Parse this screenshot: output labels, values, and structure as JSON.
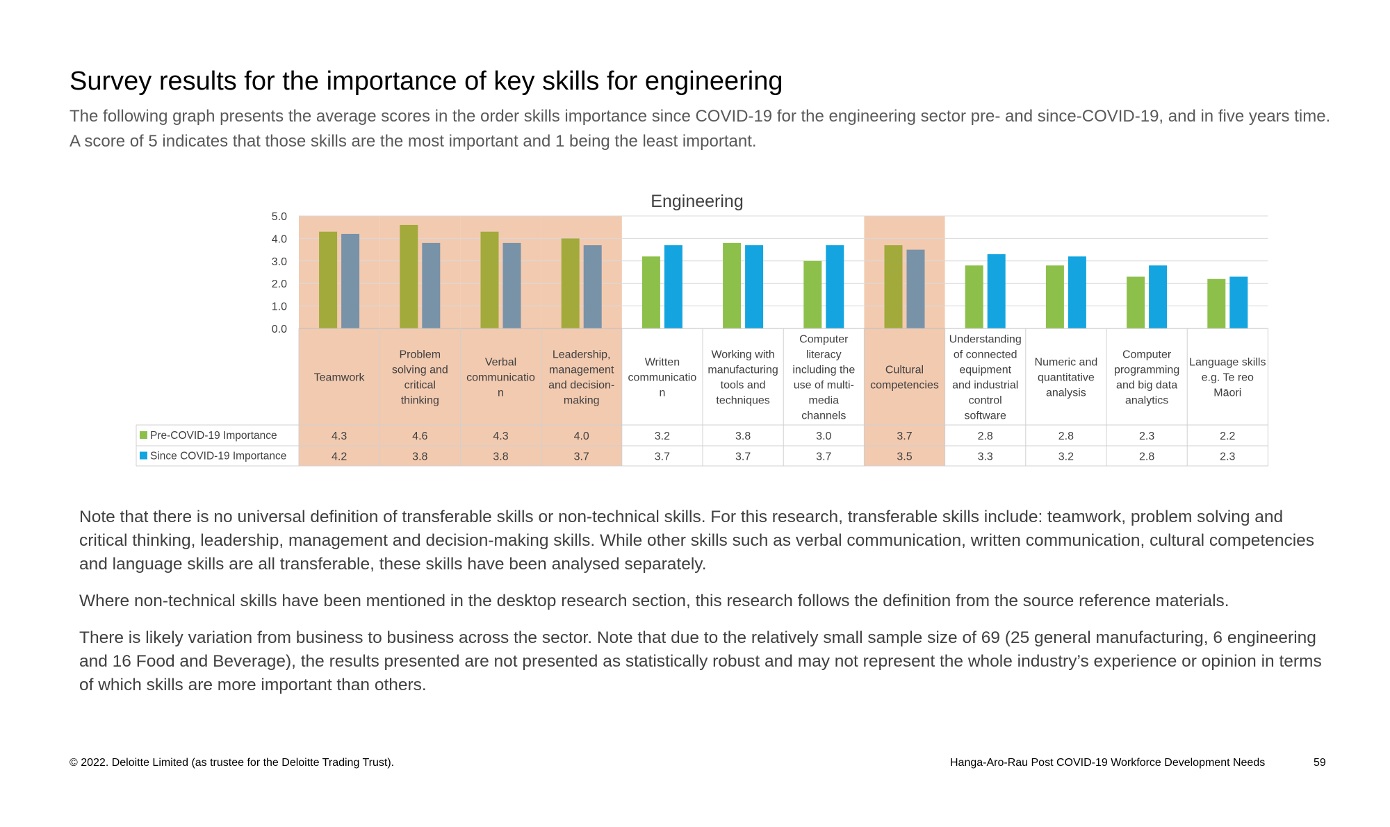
{
  "page": {
    "title": "Survey results for the importance of key skills for engineering",
    "subtitle": "The following graph presents the average scores in the order skills importance since COVID-19 for the engineering sector pre- and since-COVID-19, and in five years time. A score of 5 indicates that those skills are the most important and 1 being the least important.",
    "notes": [
      "Note that there is no universal definition of transferable skills or non-technical skills. For this research, transferable skills include: teamwork, problem solving and critical thinking, leadership, management and decision-making skills. While other skills such as verbal communication, written communication, cultural competencies and language skills are all transferable, these skills have been analysed separately.",
      "Where non-technical skills have been mentioned in the desktop research section, this research follows the definition from the source reference materials.",
      "There is likely variation from business to business across the sector. Note that due to the relatively small sample size of 69 (25 general manufacturing, 6 engineering and 16 Food and Beverage), the results presented are not presented as statistically robust and may not represent the whole industry’s experience or opinion in terms of which skills are more important than others."
    ],
    "footer_left": "© 2022. Deloitte Limited (as trustee for the Deloitte Trading Trust).",
    "footer_right": "Hanga-Aro-Rau Post COVID-19 Workforce Development Needs",
    "page_number": "59"
  },
  "chart_data": {
    "type": "bar",
    "title": "Engineering",
    "xlabel": "",
    "ylabel": "",
    "ylim": [
      0,
      5
    ],
    "y_ticks": [
      "0.0",
      "1.0",
      "2.0",
      "3.0",
      "4.0",
      "5.0"
    ],
    "grid": true,
    "legend": "data-table-left",
    "categories": [
      [
        "Teamwork"
      ],
      [
        "Problem",
        "solving and",
        "critical",
        "thinking"
      ],
      [
        "Verbal",
        "communicatio",
        "n"
      ],
      [
        "Leadership,",
        "management",
        "and decision-",
        "making"
      ],
      [
        "Written",
        "communicatio",
        "n"
      ],
      [
        "Working with",
        "manufacturing",
        "tools and",
        "techniques"
      ],
      [
        "Computer",
        "literacy",
        "including the",
        "use of multi-",
        "media",
        "channels"
      ],
      [
        "Cultural",
        "competencies"
      ],
      [
        "Understanding",
        "of connected",
        "equipment",
        "and industrial",
        "control",
        "software"
      ],
      [
        "Numeric and",
        "quantitative",
        "analysis"
      ],
      [
        "Computer",
        "programming",
        "and big data",
        "analytics"
      ],
      [
        "Language skills",
        "e.g. Te reo",
        "Māori"
      ]
    ],
    "highlighted": [
      true,
      true,
      true,
      true,
      false,
      false,
      false,
      true,
      false,
      false,
      false,
      false
    ],
    "series": [
      {
        "name": "Pre-COVID-19 Importance",
        "values": [
          4.3,
          4.6,
          4.3,
          4.0,
          3.2,
          3.8,
          3.0,
          3.7,
          2.8,
          2.8,
          2.3,
          2.2
        ],
        "labels": [
          "4.3",
          "4.6",
          "4.3",
          "4.0",
          "3.2",
          "3.8",
          "3.0",
          "3.7",
          "2.8",
          "2.8",
          "2.3",
          "2.2"
        ],
        "color": "#8DC04B",
        "highlight_color": "#A2AA3B"
      },
      {
        "name": "Since COVID-19 Importance",
        "values": [
          4.2,
          3.8,
          3.8,
          3.7,
          3.7,
          3.7,
          3.7,
          3.5,
          3.3,
          3.2,
          2.8,
          2.3
        ],
        "labels": [
          "4.2",
          "3.8",
          "3.8",
          "3.7",
          "3.7",
          "3.7",
          "3.7",
          "3.5",
          "3.3",
          "3.2",
          "2.8",
          "2.3"
        ],
        "color": "#14A5E0",
        "highlight_color": "#7892A8"
      }
    ],
    "highlight_fill": "#F2CAB0"
  }
}
